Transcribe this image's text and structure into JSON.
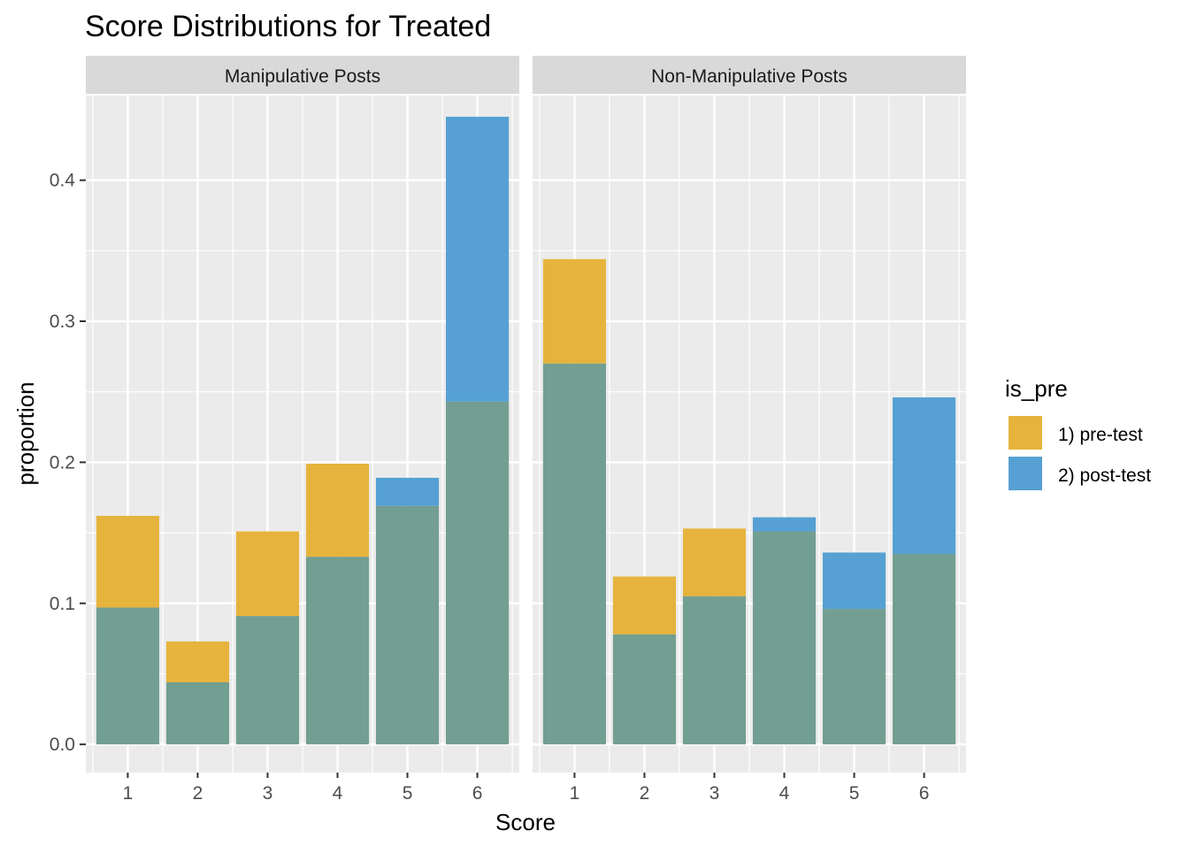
{
  "chart_data": {
    "type": "bar",
    "title": "Score Distributions for Treated",
    "xlabel": "Score",
    "ylabel": "proportion",
    "ylim": [
      -0.02,
      0.46
    ],
    "y_ticks": [
      "0.0",
      "0.1",
      "0.2",
      "0.3",
      "0.4"
    ],
    "y_tick_values": [
      0,
      0.1,
      0.2,
      0.3,
      0.4
    ],
    "categories": [
      "1",
      "2",
      "3",
      "4",
      "5",
      "6"
    ],
    "legend": {
      "title": "is_pre",
      "placement": "right",
      "entries": [
        "1) pre-test",
        "2) post-test"
      ]
    },
    "colors": {
      "pre": "#e6b43c",
      "post": "#56a0d3",
      "overlap": "#739e92",
      "panel_bg": "#ebebeb",
      "strip_bg": "#d9d9d9",
      "grid": "#ffffff"
    },
    "panels": [
      {
        "label": "Manipulative Posts",
        "series": [
          {
            "name": "1) pre-test",
            "values": [
              0.162,
              0.073,
              0.151,
              0.199,
              0.169,
              0.243
            ]
          },
          {
            "name": "2) post-test",
            "values": [
              0.097,
              0.044,
              0.091,
              0.133,
              0.189,
              0.445
            ]
          }
        ]
      },
      {
        "label": "Non-Manipulative Posts",
        "series": [
          {
            "name": "1) pre-test",
            "values": [
              0.344,
              0.119,
              0.153,
              0.151,
              0.096,
              0.135
            ]
          },
          {
            "name": "2) post-test",
            "values": [
              0.27,
              0.078,
              0.105,
              0.161,
              0.136,
              0.246
            ]
          }
        ]
      }
    ]
  }
}
